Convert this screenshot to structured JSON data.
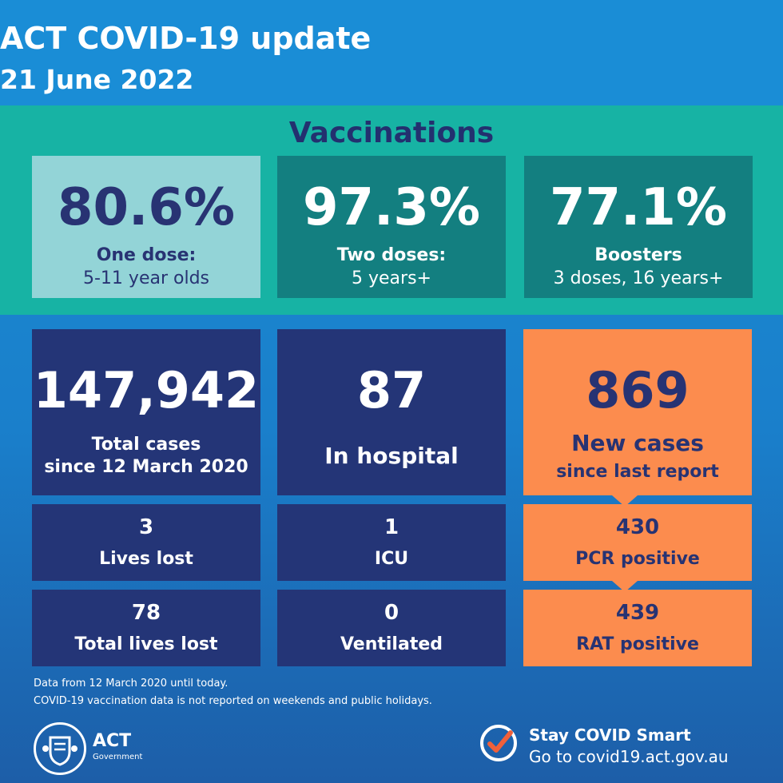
{
  "header": {
    "title": "ACT COVID-19 update",
    "date": "21 June 2022"
  },
  "vaccinations": {
    "heading": "Vaccinations",
    "items": [
      {
        "value": "80.6%",
        "label1": "One dose:",
        "label2": "5-11 year olds"
      },
      {
        "value": "97.3%",
        "label1": "Two doses:",
        "label2": "5 years+"
      },
      {
        "value": "77.1%",
        "label1": "Boosters",
        "label2": "3 doses, 16 years+"
      }
    ]
  },
  "stats": {
    "total_cases": {
      "value": "147,942",
      "label1": "Total cases",
      "label2": "since 12 March 2020"
    },
    "in_hospital": {
      "value": "87",
      "label": "In hospital"
    },
    "new_cases": {
      "value": "869",
      "label1": "New cases",
      "label2": "since last report"
    },
    "lives_lost": {
      "value": "3",
      "label": "Lives lost"
    },
    "icu": {
      "value": "1",
      "label": "ICU"
    },
    "pcr": {
      "value": "430",
      "label": "PCR positive"
    },
    "total_lives_lost": {
      "value": "78",
      "label": "Total lives lost"
    },
    "ventilated": {
      "value": "0",
      "label": "Ventilated"
    },
    "rat": {
      "value": "439",
      "label": "RAT positive"
    }
  },
  "footer": {
    "note1": "Data from 12 March 2020 until today.",
    "note2": "COVID-19 vaccination data is not reported on weekends and public holidays.",
    "logo_text": "ACT",
    "logo_sub": "Government",
    "cta1": "Stay COVID Smart",
    "cta2": "Go to covid19.act.gov.au"
  },
  "colors": {
    "header_blue": "#1a8dd6",
    "teal": "#17b3a4",
    "dark_teal": "#137f80",
    "light_teal": "#93d4d7",
    "navy": "#243577",
    "orange": "#fc8c4e",
    "check_red": "#f0603a"
  },
  "icons": {
    "logo": "act-coat-of-arms-icon",
    "check": "checkmark-circle-icon"
  }
}
